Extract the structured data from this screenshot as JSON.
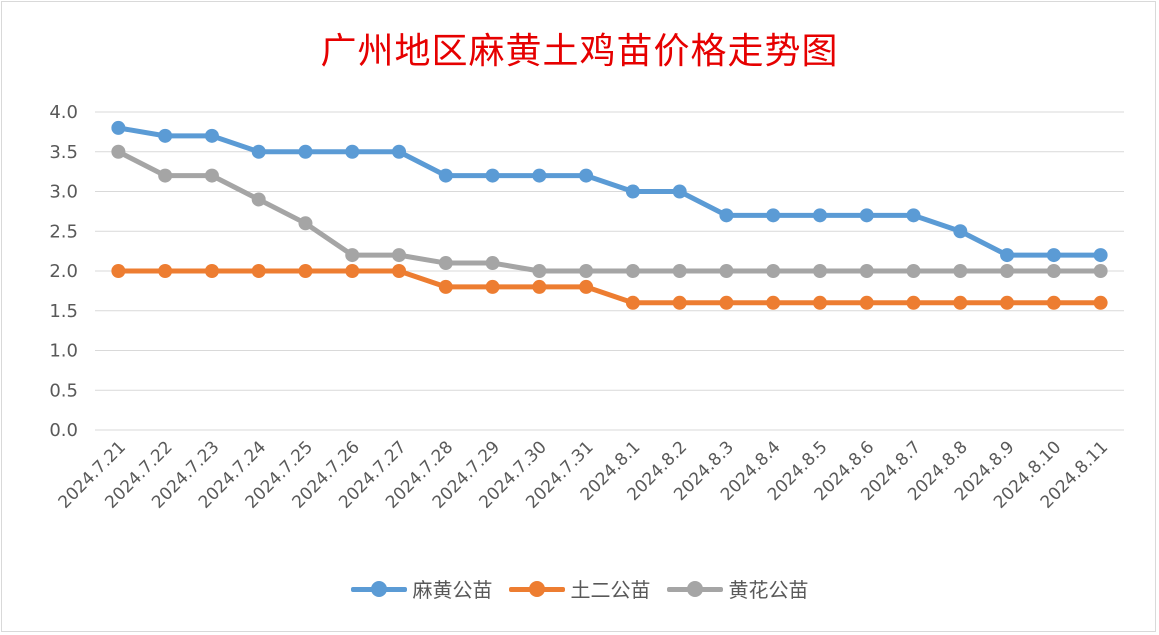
{
  "chart_data": {
    "type": "line",
    "title": "广州地区麻黄土鸡苗价格走势图",
    "xlabel": "",
    "ylabel": "",
    "ylim": [
      0,
      4
    ],
    "yticks": [
      "0.0",
      "0.5",
      "1.0",
      "1.5",
      "2.0",
      "2.5",
      "3.0",
      "3.5",
      "4.0"
    ],
    "grid": true,
    "legend": "bottom",
    "categories": [
      "2024.7.21",
      "2024.7.22",
      "2024.7.23",
      "2024.7.24",
      "2024.7.25",
      "2024.7.26",
      "2024.7.27",
      "2024.7.28",
      "2024.7.29",
      "2024.7.30",
      "2024.7.31",
      "2024.8.1",
      "2024.8.2",
      "2024.8.3",
      "2024.8.4",
      "2024.8.5",
      "2024.8.6",
      "2024.8.7",
      "2024.8.8",
      "2024.8.9",
      "2024.8.10",
      "2024.8.11"
    ],
    "series": [
      {
        "name": "麻黄公苗",
        "color": "#5b9bd5",
        "values": [
          3.8,
          3.7,
          3.7,
          3.5,
          3.5,
          3.5,
          3.5,
          3.2,
          3.2,
          3.2,
          3.2,
          3.0,
          3.0,
          2.7,
          2.7,
          2.7,
          2.7,
          2.7,
          2.5,
          2.2,
          2.2,
          2.2
        ]
      },
      {
        "name": "土二公苗",
        "color": "#ed7d31",
        "values": [
          2.0,
          2.0,
          2.0,
          2.0,
          2.0,
          2.0,
          2.0,
          1.8,
          1.8,
          1.8,
          1.8,
          1.6,
          1.6,
          1.6,
          1.6,
          1.6,
          1.6,
          1.6,
          1.6,
          1.6,
          1.6,
          1.6
        ]
      },
      {
        "name": "黄花公苗",
        "color": "#a5a5a5",
        "values": [
          3.5,
          3.2,
          3.2,
          2.9,
          2.6,
          2.2,
          2.2,
          2.1,
          2.1,
          2.0,
          2.0,
          2.0,
          2.0,
          2.0,
          2.0,
          2.0,
          2.0,
          2.0,
          2.0,
          2.0,
          2.0,
          2.0
        ]
      }
    ]
  }
}
